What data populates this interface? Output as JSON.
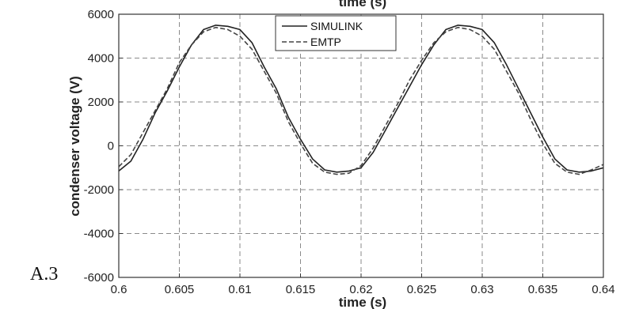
{
  "panel_label": "A.3",
  "cut_top_label": "time (s)",
  "chart_data": {
    "type": "line",
    "xlabel": "time (s)",
    "ylabel": "condenser voltage (V)",
    "xlim": [
      0.6,
      0.64
    ],
    "ylim": [
      -6000,
      6000
    ],
    "xticks": [
      0.6,
      0.605,
      0.61,
      0.615,
      0.62,
      0.625,
      0.63,
      0.635,
      0.64
    ],
    "xtick_labels": [
      "0.6",
      "0.605",
      "0.61",
      "0.615",
      "0.62",
      "0.625",
      "0.63",
      "0.635",
      "0.64"
    ],
    "yticks": [
      6000,
      4000,
      2000,
      0,
      -2000,
      -4000,
      -6000
    ],
    "ytick_labels": [
      "6000",
      "4000",
      "2000",
      "0",
      "-2000",
      "-4000",
      "-6000"
    ],
    "grid": true,
    "legend_position": "top-center",
    "series": [
      {
        "name": "SIMULINK",
        "style": "solid",
        "color": "#222222",
        "x": [
          0.6,
          0.601,
          0.602,
          0.603,
          0.604,
          0.605,
          0.606,
          0.607,
          0.608,
          0.609,
          0.61,
          0.611,
          0.612,
          0.613,
          0.614,
          0.615,
          0.616,
          0.617,
          0.618,
          0.619,
          0.62,
          0.621,
          0.622,
          0.623,
          0.624,
          0.625,
          0.626,
          0.627,
          0.628,
          0.629,
          0.63,
          0.631,
          0.632,
          0.633,
          0.634,
          0.635,
          0.636,
          0.637,
          0.638,
          0.639,
          0.64
        ],
        "y": [
          -1150,
          -700,
          300,
          1500,
          2500,
          3600,
          4600,
          5300,
          5500,
          5450,
          5300,
          4700,
          3600,
          2600,
          1300,
          300,
          -600,
          -1100,
          -1200,
          -1150,
          -1000,
          -300,
          700,
          1700,
          2700,
          3700,
          4600,
          5300,
          5500,
          5450,
          5300,
          4700,
          3700,
          2600,
          1500,
          400,
          -600,
          -1100,
          -1200,
          -1150,
          -1000
        ]
      },
      {
        "name": "EMTP",
        "style": "dashed",
        "color": "#444444",
        "x": [
          0.6,
          0.601,
          0.602,
          0.603,
          0.604,
          0.605,
          0.606,
          0.607,
          0.608,
          0.609,
          0.61,
          0.611,
          0.612,
          0.613,
          0.614,
          0.615,
          0.616,
          0.617,
          0.618,
          0.619,
          0.62,
          0.621,
          0.622,
          0.623,
          0.624,
          0.625,
          0.626,
          0.627,
          0.628,
          0.629,
          0.63,
          0.631,
          0.632,
          0.633,
          0.634,
          0.635,
          0.636,
          0.637,
          0.638,
          0.639,
          0.64
        ],
        "y": [
          -950,
          -400,
          600,
          1600,
          2600,
          3800,
          4600,
          5200,
          5400,
          5300,
          5000,
          4400,
          3400,
          2400,
          1100,
          100,
          -800,
          -1200,
          -1300,
          -1250,
          -900,
          -100,
          900,
          1900,
          3000,
          3900,
          4700,
          5200,
          5400,
          5300,
          5000,
          4400,
          3400,
          2400,
          1200,
          100,
          -800,
          -1200,
          -1300,
          -1100,
          -850
        ]
      }
    ]
  }
}
